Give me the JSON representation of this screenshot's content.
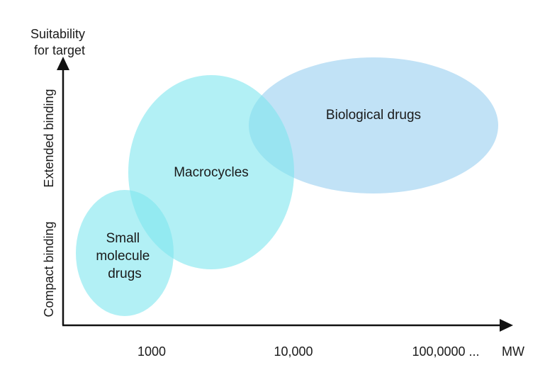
{
  "y_axis": {
    "title_line1": "Suitability",
    "title_line2": "for target",
    "labels": {
      "lower": "Compact binding",
      "upper": "Extended binding"
    }
  },
  "x_axis": {
    "title": "MW",
    "ticks": [
      "1000",
      "10,000",
      "100,0000 ..."
    ]
  },
  "regions": {
    "small_molecule": {
      "line1": "Small",
      "line2": "molecule",
      "line3": "drugs",
      "color": "#7fe6ee"
    },
    "macrocycles": {
      "label": "Macrocycles",
      "color": "#7fe6ee"
    },
    "biological": {
      "label": "Biological drugs",
      "color": "#a6d6f2"
    }
  },
  "colors": {
    "axis": "#111111",
    "text": "#1a1a1a"
  }
}
